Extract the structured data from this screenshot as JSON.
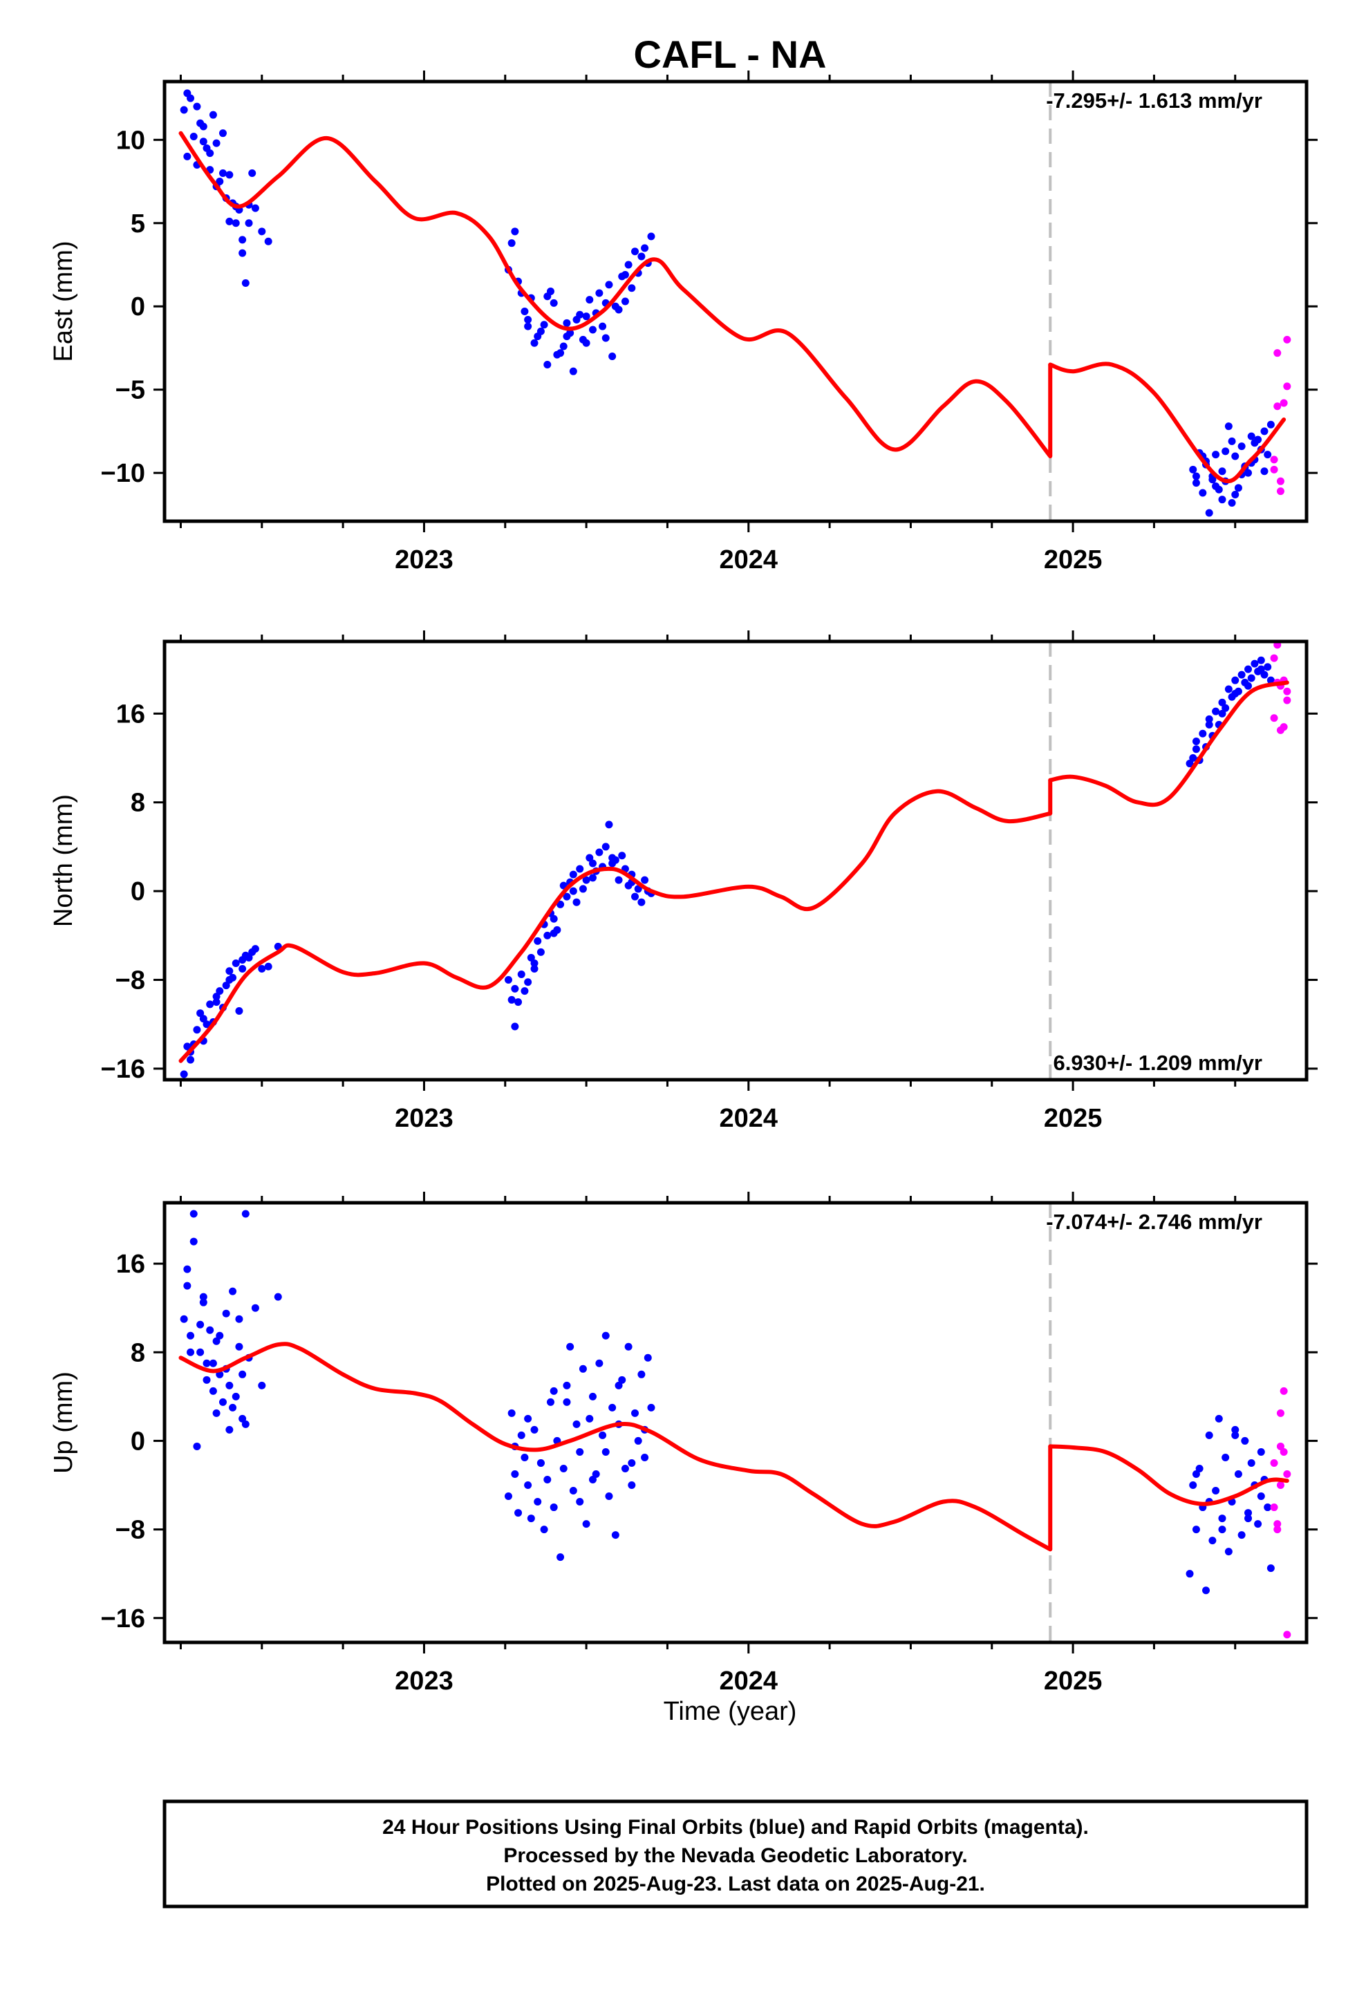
{
  "title": "CAFL - NA",
  "x_axis_label": "Time (year)",
  "footer": {
    "line1": "24 Hour Positions Using Final Orbits (blue) and Rapid Orbits (magenta).",
    "line2": "Processed by the Nevada Geodetic Laboratory.",
    "line3": "Plotted on 2025-Aug-23. Last data on 2025-Aug-21."
  },
  "colors": {
    "final_orbits": "#0000ff",
    "rapid_orbits": "#ff00ff",
    "model": "#ff0000",
    "break_line": "#c0c0c0",
    "frame": "#000000"
  },
  "chart_data": [
    {
      "type": "scatter",
      "name": "East",
      "ylabel": "East (mm)",
      "xlim": [
        2022.2,
        2025.72
      ],
      "ylim": [
        -12.9,
        13.5
      ],
      "xticks": [
        2023,
        2024,
        2025
      ],
      "yticks": [
        10,
        5,
        0,
        -5,
        -10
      ],
      "ytick_labels": [
        "10",
        "5",
        "0",
        "−5",
        "−10"
      ],
      "rate_label": "-7.295+/- 1.613 mm/yr",
      "rate_position": "top-right",
      "break_epoch": 2024.93,
      "model_line": {
        "x": [
          2022.25,
          2022.35,
          2022.43,
          2022.55,
          2022.7,
          2022.85,
          2022.97,
          2023.1,
          2023.2,
          2023.3,
          2023.43,
          2023.55,
          2023.7,
          2023.8,
          2023.98,
          2024.12,
          2024.3,
          2024.45,
          2024.6,
          2024.7,
          2024.8,
          2024.93,
          2024.93,
          2025.0,
          2025.12,
          2025.25,
          2025.45,
          2025.55,
          2025.65
        ],
        "y": [
          10.4,
          7.5,
          6.0,
          7.8,
          10.1,
          7.5,
          5.3,
          5.6,
          4.2,
          1.0,
          -1.3,
          -0.3,
          2.8,
          1.0,
          -1.9,
          -1.6,
          -5.5,
          -8.6,
          -6.0,
          -4.5,
          -5.8,
          -9.0,
          -3.5,
          -3.9,
          -3.5,
          -5.2,
          -10.3,
          -9.2,
          -6.8
        ]
      },
      "points_final": {
        "x": [
          2022.26,
          2022.27,
          2022.28,
          2022.29,
          2022.3,
          2022.31,
          2022.32,
          2022.33,
          2022.34,
          2022.35,
          2022.36,
          2022.37,
          2022.38,
          2022.39,
          2022.4,
          2022.41,
          2022.42,
          2022.43,
          2022.44,
          2022.45,
          2022.46,
          2022.47,
          2022.48,
          2022.5,
          2022.52,
          2022.27,
          2022.3,
          2022.34,
          2022.38,
          2022.42,
          2022.46,
          2022.32,
          2022.36,
          2022.4,
          2022.44,
          2023.26,
          2023.28,
          2023.3,
          2023.32,
          2023.34,
          2023.36,
          2023.38,
          2023.4,
          2023.42,
          2023.44,
          2023.46,
          2023.48,
          2023.5,
          2023.52,
          2023.54,
          2023.56,
          2023.58,
          2023.6,
          2023.62,
          2023.64,
          2023.66,
          2023.68,
          2023.7,
          2023.27,
          2023.31,
          2023.35,
          2023.39,
          2023.43,
          2023.47,
          2023.51,
          2023.55,
          2023.59,
          2023.63,
          2023.67,
          2023.29,
          2023.33,
          2023.37,
          2023.41,
          2023.45,
          2023.49,
          2023.53,
          2023.57,
          2023.61,
          2023.65,
          2023.69,
          2023.32,
          2023.38,
          2023.44,
          2023.5,
          2023.56,
          2023.62,
          2025.37,
          2025.38,
          2025.39,
          2025.4,
          2025.41,
          2025.42,
          2025.43,
          2025.44,
          2025.45,
          2025.46,
          2025.47,
          2025.48,
          2025.49,
          2025.5,
          2025.51,
          2025.52,
          2025.53,
          2025.54,
          2025.55,
          2025.56,
          2025.57,
          2025.58,
          2025.59,
          2025.6,
          2025.61,
          2025.38,
          2025.41,
          2025.44,
          2025.47,
          2025.5,
          2025.53,
          2025.56,
          2025.59,
          2025.4,
          2025.43,
          2025.46,
          2025.49,
          2025.52,
          2025.55
        ],
        "y": [
          11.8,
          9.0,
          12.5,
          10.2,
          8.5,
          11.0,
          10.8,
          9.5,
          8.2,
          11.5,
          9.8,
          7.5,
          8.0,
          6.5,
          7.9,
          6.2,
          5.0,
          5.8,
          3.2,
          1.4,
          6.1,
          8.0,
          5.9,
          4.5,
          3.9,
          12.8,
          12.0,
          9.2,
          10.4,
          6.0,
          5.0,
          9.9,
          7.2,
          5.1,
          4.0,
          2.2,
          4.5,
          0.8,
          -0.8,
          -2.2,
          -1.5,
          -3.5,
          0.2,
          -2.8,
          -1.0,
          -3.9,
          -0.5,
          -2.2,
          -1.4,
          0.8,
          -1.9,
          -3.0,
          -0.2,
          0.3,
          1.1,
          2.0,
          3.5,
          4.2,
          3.8,
          -0.3,
          -1.8,
          0.9,
          -2.4,
          -0.8,
          0.4,
          -1.2,
          0.0,
          2.5,
          3.0,
          1.5,
          0.5,
          -1.1,
          -2.9,
          -1.6,
          -2.0,
          -0.4,
          1.3,
          1.8,
          3.3,
          2.6,
          -1.2,
          0.6,
          -1.8,
          -0.6,
          0.2,
          1.9,
          -9.8,
          -10.6,
          -8.8,
          -11.2,
          -9.5,
          -12.4,
          -10.2,
          -8.9,
          -11.0,
          -9.9,
          -10.5,
          -7.2,
          -11.8,
          -9.0,
          -10.9,
          -8.4,
          -9.7,
          -10.0,
          -7.8,
          -9.2,
          -8.0,
          -8.6,
          -7.5,
          -8.9,
          -7.1,
          -10.2,
          -9.3,
          -10.8,
          -8.7,
          -11.3,
          -9.6,
          -8.2,
          -9.9,
          -9.0,
          -10.4,
          -11.6,
          -8.1,
          -10.1,
          -9.4
        ]
      },
      "points_rapid": {
        "x": [
          2025.62,
          2025.63,
          2025.64,
          2025.65,
          2025.66,
          2025.62,
          2025.64,
          2025.66,
          2025.63
        ],
        "y": [
          -9.8,
          -6.0,
          -10.5,
          -5.8,
          -2.0,
          -9.2,
          -11.1,
          -4.8,
          -2.8
        ]
      }
    },
    {
      "type": "scatter",
      "name": "North",
      "ylabel": "North (mm)",
      "xlim": [
        2022.2,
        2025.72
      ],
      "ylim": [
        -17,
        22.5
      ],
      "xticks": [
        2023,
        2024,
        2025
      ],
      "yticks": [
        16,
        8,
        0,
        -8,
        -16
      ],
      "ytick_labels": [
        "16",
        "8",
        "0",
        "−8",
        "−16"
      ],
      "rate_label": "6.930+/- 1.209 mm/yr",
      "rate_position": "bottom-right",
      "break_epoch": 2024.93,
      "model_line": {
        "x": [
          2022.25,
          2022.35,
          2022.45,
          2022.55,
          2022.6,
          2022.75,
          2022.85,
          2023.0,
          2023.1,
          2023.2,
          2023.3,
          2023.45,
          2023.58,
          2023.7,
          2023.8,
          2024.0,
          2024.1,
          2024.2,
          2024.35,
          2024.45,
          2024.58,
          2024.7,
          2024.8,
          2024.93,
          2024.93,
          2025.0,
          2025.1,
          2025.2,
          2025.3,
          2025.45,
          2025.55,
          2025.66
        ],
        "y": [
          -15.3,
          -12.0,
          -7.6,
          -5.5,
          -5.0,
          -7.3,
          -7.4,
          -6.5,
          -7.8,
          -8.6,
          -5.5,
          0.5,
          2.0,
          0.0,
          -0.5,
          0.4,
          -0.5,
          -1.5,
          2.5,
          7.0,
          9.0,
          7.5,
          6.3,
          7.0,
          10.0,
          10.3,
          9.5,
          8.0,
          8.5,
          14.5,
          18.0,
          18.8
        ]
      },
      "points_final": {
        "x": [
          2022.26,
          2022.27,
          2022.28,
          2022.29,
          2022.3,
          2022.31,
          2022.32,
          2022.33,
          2022.34,
          2022.35,
          2022.36,
          2022.37,
          2022.38,
          2022.39,
          2022.4,
          2022.41,
          2022.42,
          2022.43,
          2022.44,
          2022.45,
          2022.46,
          2022.47,
          2022.48,
          2022.5,
          2022.52,
          2022.55,
          2022.28,
          2022.32,
          2022.36,
          2022.4,
          2022.44,
          2023.26,
          2023.27,
          2023.28,
          2023.29,
          2023.3,
          2023.31,
          2023.32,
          2023.33,
          2023.34,
          2023.35,
          2023.36,
          2023.37,
          2023.38,
          2023.39,
          2023.4,
          2023.41,
          2023.42,
          2023.43,
          2023.44,
          2023.45,
          2023.46,
          2023.47,
          2023.48,
          2023.49,
          2023.5,
          2023.51,
          2023.52,
          2023.53,
          2023.54,
          2023.55,
          2023.56,
          2023.57,
          2023.58,
          2023.59,
          2023.6,
          2023.61,
          2023.62,
          2023.63,
          2023.64,
          2023.65,
          2023.66,
          2023.67,
          2023.68,
          2023.69,
          2023.7,
          2023.28,
          2023.34,
          2023.4,
          2023.46,
          2023.52,
          2023.58,
          2023.64,
          2025.36,
          2025.37,
          2025.38,
          2025.39,
          2025.4,
          2025.41,
          2025.42,
          2025.43,
          2025.44,
          2025.45,
          2025.46,
          2025.47,
          2025.48,
          2025.49,
          2025.5,
          2025.51,
          2025.52,
          2025.53,
          2025.54,
          2025.55,
          2025.56,
          2025.57,
          2025.58,
          2025.59,
          2025.6,
          2025.61,
          2025.38,
          2025.42,
          2025.46,
          2025.5,
          2025.54,
          2025.58
        ],
        "y": [
          -16.5,
          -14.0,
          -15.2,
          -13.8,
          -12.5,
          -11.0,
          -13.5,
          -12.0,
          -10.2,
          -11.8,
          -9.5,
          -9.0,
          -10.5,
          -8.5,
          -7.2,
          -7.8,
          -6.5,
          -10.8,
          -6.2,
          -5.8,
          -6.0,
          -5.5,
          -5.2,
          -7.0,
          -6.8,
          -5.0,
          -14.5,
          -11.5,
          -10.0,
          -8.0,
          -7.0,
          -8.0,
          -9.8,
          -12.2,
          -10.0,
          -7.5,
          -9.0,
          -8.2,
          -6.0,
          -7.0,
          -4.5,
          -5.5,
          -3.0,
          -4.0,
          -2.0,
          -2.5,
          -3.5,
          -1.2,
          0.5,
          -0.5,
          0.8,
          1.5,
          -1.0,
          2.0,
          0.2,
          1.0,
          3.0,
          2.5,
          1.8,
          3.5,
          2.2,
          4.0,
          6.0,
          3.0,
          2.8,
          1.0,
          3.2,
          2.0,
          0.5,
          1.5,
          -0.5,
          0.2,
          -1.0,
          1.0,
          0.0,
          -0.2,
          -8.8,
          -6.5,
          -3.8,
          0.0,
          1.2,
          2.5,
          0.8,
          11.5,
          12.0,
          13.5,
          11.8,
          14.2,
          13.0,
          15.5,
          14.0,
          16.2,
          15.0,
          17.0,
          16.5,
          18.2,
          17.5,
          19.0,
          18.0,
          19.5,
          18.8,
          20.0,
          19.2,
          20.5,
          19.8,
          20.8,
          19.5,
          20.2,
          19.0,
          12.8,
          15.0,
          16.0,
          17.8,
          18.5,
          20.0
        ]
      },
      "points_rapid": {
        "x": [
          2025.62,
          2025.63,
          2025.64,
          2025.65,
          2025.66,
          2025.62,
          2025.64,
          2025.65,
          2025.66,
          2025.63
        ],
        "y": [
          21.0,
          22.2,
          18.5,
          14.8,
          18.0,
          15.6,
          14.5,
          19.0,
          17.2,
          18.8
        ]
      }
    },
    {
      "type": "scatter",
      "name": "Up",
      "ylabel": "Up (mm)",
      "xlim": [
        2022.2,
        2025.72
      ],
      "ylim": [
        -18.2,
        21.5
      ],
      "xticks": [
        2023,
        2024,
        2025
      ],
      "yticks": [
        16,
        8,
        0,
        -8,
        -16
      ],
      "ytick_labels": [
        "16",
        "8",
        "0",
        "−8",
        "−16"
      ],
      "rate_label": "-7.074+/- 2.746 mm/yr",
      "rate_position": "top-right",
      "break_epoch": 2024.93,
      "model_line": {
        "x": [
          2022.25,
          2022.35,
          2022.45,
          2022.55,
          2022.62,
          2022.75,
          2022.85,
          2022.97,
          2023.05,
          2023.15,
          2023.25,
          2023.35,
          2023.45,
          2023.6,
          2023.7,
          2023.85,
          2024.0,
          2024.1,
          2024.2,
          2024.35,
          2024.45,
          2024.6,
          2024.7,
          2024.85,
          2024.93,
          2024.93,
          2025.0,
          2025.1,
          2025.2,
          2025.3,
          2025.4,
          2025.5,
          2025.6,
          2025.66
        ],
        "y": [
          7.5,
          6.3,
          7.5,
          8.7,
          8.3,
          6.0,
          4.7,
          4.3,
          3.6,
          1.5,
          -0.3,
          -0.8,
          0.0,
          1.5,
          0.8,
          -1.7,
          -2.7,
          -3.0,
          -4.8,
          -7.5,
          -7.3,
          -5.5,
          -6.0,
          -8.5,
          -9.8,
          -0.5,
          -0.6,
          -1.0,
          -2.6,
          -4.8,
          -5.7,
          -5.0,
          -3.6,
          -3.6
        ]
      },
      "points_final": {
        "x": [
          2022.26,
          2022.27,
          2022.28,
          2022.29,
          2022.3,
          2022.31,
          2022.32,
          2022.33,
          2022.34,
          2022.35,
          2022.36,
          2022.37,
          2022.38,
          2022.39,
          2022.4,
          2022.41,
          2022.42,
          2022.43,
          2022.44,
          2022.45,
          2022.46,
          2022.48,
          2022.5,
          2022.55,
          2022.27,
          2022.29,
          2022.31,
          2022.33,
          2022.35,
          2022.37,
          2022.39,
          2022.41,
          2022.43,
          2022.45,
          2022.28,
          2022.32,
          2022.36,
          2022.4,
          2022.44,
          2023.26,
          2023.27,
          2023.28,
          2023.29,
          2023.3,
          2023.31,
          2023.32,
          2023.33,
          2023.34,
          2023.35,
          2023.36,
          2023.37,
          2023.38,
          2023.39,
          2023.4,
          2023.41,
          2023.42,
          2023.43,
          2023.44,
          2023.45,
          2023.46,
          2023.47,
          2023.48,
          2023.49,
          2023.5,
          2023.51,
          2023.52,
          2023.53,
          2023.54,
          2023.55,
          2023.56,
          2023.57,
          2023.58,
          2023.59,
          2023.6,
          2023.61,
          2023.62,
          2023.63,
          2023.64,
          2023.65,
          2023.66,
          2023.67,
          2023.68,
          2023.69,
          2023.7,
          2023.28,
          2023.32,
          2023.36,
          2023.4,
          2023.44,
          2023.48,
          2023.52,
          2023.56,
          2023.6,
          2023.64,
          2023.68,
          2025.36,
          2025.37,
          2025.38,
          2025.39,
          2025.4,
          2025.41,
          2025.42,
          2025.43,
          2025.44,
          2025.45,
          2025.46,
          2025.47,
          2025.48,
          2025.49,
          2025.5,
          2025.51,
          2025.52,
          2025.53,
          2025.54,
          2025.55,
          2025.56,
          2025.57,
          2025.58,
          2025.59,
          2025.6,
          2025.61,
          2025.38,
          2025.42,
          2025.46,
          2025.5,
          2025.54,
          2025.58
        ],
        "y": [
          11.0,
          14.0,
          9.5,
          18.0,
          -0.5,
          8.0,
          12.5,
          5.5,
          10.0,
          7.0,
          9.0,
          6.0,
          3.5,
          11.5,
          1.0,
          13.5,
          4.0,
          8.5,
          2.0,
          20.5,
          7.5,
          12.0,
          5.0,
          13.0,
          15.5,
          20.5,
          10.5,
          7.0,
          4.5,
          9.5,
          6.5,
          3.0,
          11.0,
          1.5,
          8.0,
          13.0,
          2.5,
          5.0,
          6.0,
          -5.0,
          2.5,
          -3.0,
          -6.5,
          0.5,
          -1.5,
          -4.0,
          -7.0,
          1.0,
          -5.5,
          -2.0,
          -8.0,
          -3.5,
          3.5,
          -6.0,
          0.0,
          -10.5,
          -2.5,
          5.0,
          8.5,
          -4.5,
          1.5,
          -1.0,
          6.5,
          -7.5,
          2.0,
          4.0,
          -3.0,
          7.0,
          0.5,
          9.5,
          -5.0,
          3.0,
          -8.5,
          1.5,
          5.5,
          -2.5,
          8.5,
          -4.0,
          2.5,
          0.0,
          6.0,
          -1.5,
          7.5,
          3.0,
          -0.5,
          2.0,
          -2.0,
          4.5,
          3.5,
          -5.5,
          -3.5,
          -1.0,
          5.0,
          -2.0,
          1.0,
          -12.0,
          -4.0,
          -8.0,
          -2.5,
          -6.0,
          -13.5,
          0.5,
          -9.0,
          -4.5,
          2.0,
          -7.0,
          -1.5,
          -10.0,
          -5.5,
          1.0,
          -3.0,
          -8.5,
          0.0,
          -6.5,
          -2.0,
          -4.0,
          -7.5,
          -5.0,
          -3.5,
          -6.0,
          -11.5,
          -3.0,
          -5.5,
          -8.0,
          0.5,
          -7.0,
          -1.0
        ]
      },
      "points_rapid": {
        "x": [
          2025.62,
          2025.63,
          2025.64,
          2025.65,
          2025.66,
          2025.62,
          2025.64,
          2025.65,
          2025.66,
          2025.63,
          2025.64
        ],
        "y": [
          -2.0,
          -7.5,
          -0.5,
          4.5,
          -3.0,
          -6.0,
          2.5,
          -1.0,
          -17.5,
          -8.0,
          -4.0
        ]
      }
    }
  ]
}
